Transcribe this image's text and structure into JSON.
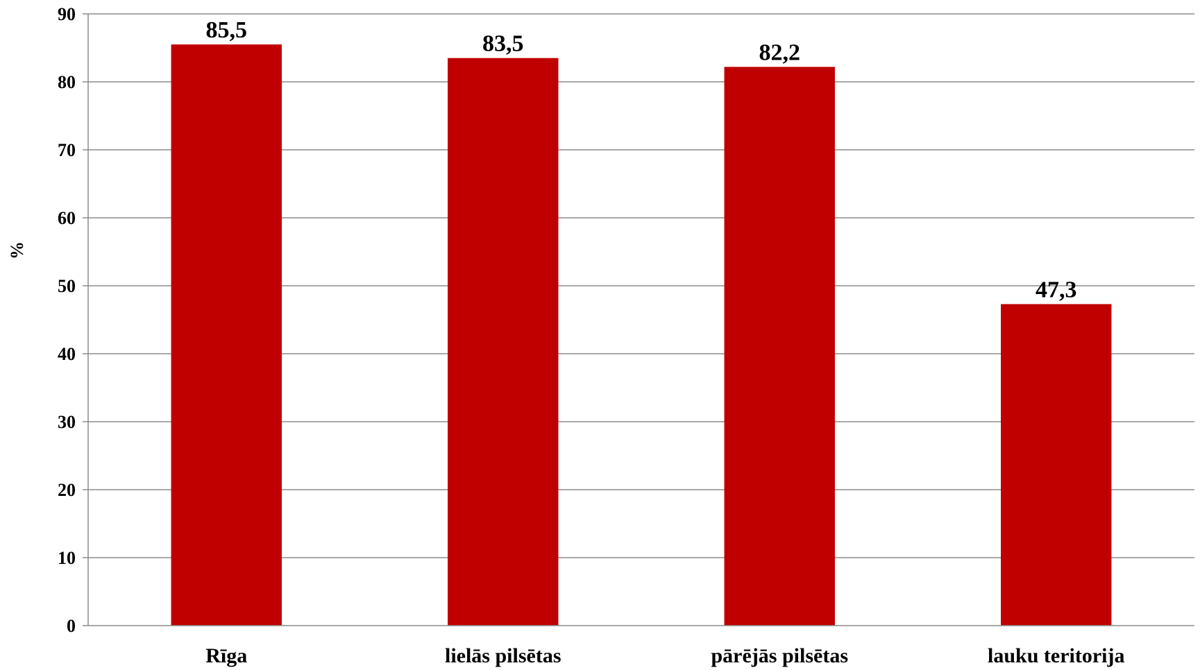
{
  "chart_data": {
    "type": "bar",
    "title": "",
    "xlabel": "",
    "ylabel": "%",
    "ylim": [
      0,
      90
    ],
    "yticks": [
      0,
      10,
      20,
      30,
      40,
      50,
      60,
      70,
      80,
      90
    ],
    "grid": true,
    "categories": [
      "Rīga",
      "lielās pilsētas",
      "pārējās pilsētas",
      "lauku teritorija"
    ],
    "values": [
      85.5,
      83.5,
      82.2,
      47.3
    ],
    "value_labels": [
      "85,5",
      "83,5",
      "82,2",
      "47,3"
    ],
    "bar_color": "#c00000",
    "gridline_color": "#8c8c8c"
  }
}
